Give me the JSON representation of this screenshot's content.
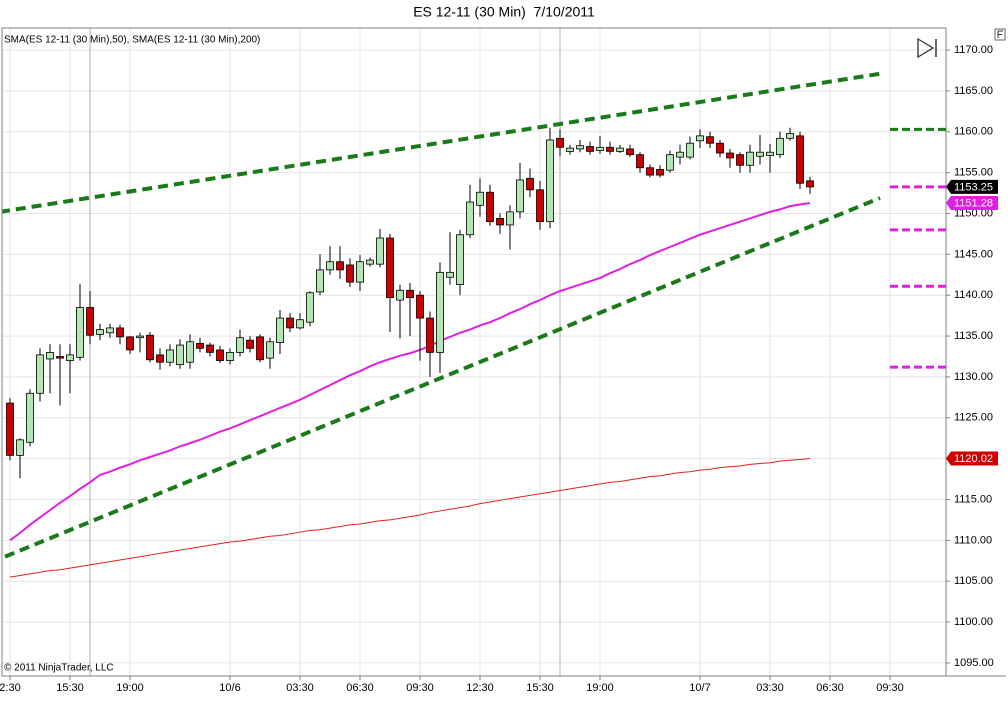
{
  "chart_data": {
    "type": "candlestick",
    "title": "ES 12-11 (30 Min)  7/10/2011",
    "indicator_label": "SMA(ES 12-11 (30 Min),50), SMA(ES 12-11 (30 Min),200)",
    "copyright": "© 2011 NinjaTrader, LLC",
    "categories": [
      "2:30",
      null,
      null,
      null,
      null,
      null,
      "15:30",
      null,
      null,
      null,
      null,
      null,
      "19:00",
      null,
      null,
      null,
      null,
      null,
      null,
      null,
      null,
      null,
      "10/6",
      null,
      null,
      null,
      null,
      null,
      null,
      "03:30",
      null,
      null,
      null,
      null,
      null,
      "06:30",
      null,
      null,
      null,
      null,
      null,
      "09:30",
      null,
      null,
      null,
      null,
      null,
      "12:30",
      null,
      null,
      null,
      null,
      null,
      "15:30",
      null,
      null,
      null,
      null,
      null,
      "19:00",
      null,
      null,
      null,
      null,
      null,
      null,
      null,
      null,
      null,
      "10/7",
      null,
      null,
      null,
      null,
      null,
      null,
      "03:30",
      null,
      null,
      null,
      null,
      null,
      "06:30",
      null,
      null,
      null,
      null,
      null,
      "09:30"
    ],
    "ohlc": {
      "up_color": "#b4e6b4",
      "down_color": "#cc0000",
      "outline": "#000000",
      "open": [
        1126.8,
        1120.4,
        1122.0,
        1128.0,
        1132.2,
        1132.5,
        1132.0,
        1132.4,
        1138.5,
        1135.2,
        1135.4,
        1136.0,
        1134.9,
        1134.8,
        1135.1,
        1132.7,
        1131.8,
        1131.5,
        1131.8,
        1134.1,
        1133.9,
        1133.3,
        1132.0,
        1133.0,
        1134.5,
        1134.9,
        1132.3,
        1134.2,
        1137.2,
        1136.0,
        1136.7,
        1140.4,
        1143.1,
        1144.1,
        1143.7,
        1141.6,
        1143.8,
        1143.8,
        1147.0,
        1139.4,
        1140.6,
        1140.0,
        1137.2,
        1133.0,
        1142.2,
        1141.3,
        1147.4,
        1151.0,
        1152.6,
        1149.4,
        1148.6,
        1150.2,
        1154.3,
        1152.9,
        1149.0,
        1159.2,
        1157.6,
        1157.9,
        1158.2,
        1157.7,
        1158.1,
        1157.6,
        1157.9,
        1157.2,
        1155.6,
        1155.4,
        1155.3,
        1156.9,
        1156.9,
        1158.9,
        1159.4,
        1158.6,
        1157.4,
        1157.2,
        1155.9,
        1157.0,
        1157.1,
        1157.2,
        1159.2,
        1159.5,
        1154.0,
        null,
        null,
        null,
        null,
        null,
        null,
        null,
        null
      ],
      "high": [
        1127.4,
        1122.5,
        1128.5,
        1133.5,
        1134.0,
        1134.0,
        1134.0,
        1141.4,
        1140.5,
        1136.5,
        1136.5,
        1136.4,
        1135.0,
        1135.4,
        1135.5,
        1133.5,
        1134.0,
        1134.6,
        1135.2,
        1134.8,
        1134.2,
        1133.8,
        1133.5,
        1135.8,
        1135.0,
        1135.2,
        1134.8,
        1138.2,
        1137.8,
        1137.8,
        1140.5,
        1145.0,
        1146.0,
        1146.0,
        1144.5,
        1144.9,
        1144.6,
        1148.1,
        1147.5,
        1141.3,
        1141.5,
        1140.5,
        1138.0,
        1144.0,
        1147.7,
        1148.0,
        1153.5,
        1154.3,
        1153.5,
        1150.0,
        1151.0,
        1156.2,
        1155.5,
        1154.0,
        1160.5,
        1160.3,
        1158.4,
        1159.0,
        1158.8,
        1159.5,
        1158.8,
        1158.4,
        1158.4,
        1157.5,
        1156.0,
        1155.9,
        1157.7,
        1158.4,
        1159.4,
        1160.3,
        1160.0,
        1159.0,
        1157.9,
        1157.5,
        1158.4,
        1159.6,
        1158.5,
        1160.0,
        1160.5,
        1160.0,
        1154.5,
        null,
        null,
        null,
        null,
        null,
        null,
        null,
        null
      ],
      "low": [
        1119.8,
        1117.6,
        1121.5,
        1127.0,
        1128.0,
        1126.5,
        1128.0,
        1132.0,
        1134.0,
        1134.5,
        1134.8,
        1134.0,
        1132.8,
        1133.0,
        1131.8,
        1130.9,
        1131.3,
        1131.0,
        1131.0,
        1133.0,
        1132.5,
        1131.7,
        1131.5,
        1132.5,
        1133.0,
        1131.8,
        1131.0,
        1132.8,
        1135.5,
        1135.8,
        1136.2,
        1140.0,
        1142.5,
        1142.0,
        1141.0,
        1140.5,
        1143.5,
        1143.4,
        1135.5,
        1134.7,
        1135.0,
        1132.0,
        1130.0,
        1130.5,
        1141.3,
        1140.0,
        1147.0,
        1149.6,
        1148.5,
        1147.5,
        1145.6,
        1149.4,
        1152.0,
        1148.0,
        1148.2,
        1157.0,
        1157.2,
        1157.5,
        1157.2,
        1157.3,
        1157.2,
        1157.4,
        1156.9,
        1155.0,
        1154.4,
        1154.4,
        1155.0,
        1156.0,
        1156.6,
        1158.0,
        1158.0,
        1156.9,
        1155.6,
        1155.0,
        1155.0,
        1156.0,
        1155.0,
        1156.8,
        1158.9,
        1153.0,
        1152.4,
        null,
        null,
        null,
        null,
        null,
        null,
        null,
        null
      ],
      "close": [
        1120.4,
        1122.3,
        1128.0,
        1132.7,
        1133.0,
        1132.3,
        1132.7,
        1138.5,
        1135.1,
        1135.8,
        1136.0,
        1134.9,
        1133.3,
        1135.0,
        1132.1,
        1131.8,
        1133.3,
        1133.9,
        1134.3,
        1133.5,
        1133.0,
        1132.0,
        1133.0,
        1134.8,
        1133.5,
        1132.1,
        1134.3,
        1137.2,
        1136.0,
        1137.0,
        1140.3,
        1143.1,
        1144.1,
        1143.1,
        1141.6,
        1144.1,
        1144.3,
        1147.0,
        1139.7,
        1140.6,
        1139.7,
        1137.2,
        1133.0,
        1142.8,
        1142.8,
        1147.4,
        1151.4,
        1152.6,
        1149.0,
        1148.6,
        1150.2,
        1154.1,
        1152.9,
        1149.0,
        1159.0,
        1158.1,
        1158.0,
        1158.3,
        1157.6,
        1158.1,
        1157.6,
        1158.0,
        1157.2,
        1155.6,
        1154.7,
        1154.7,
        1157.2,
        1157.5,
        1158.6,
        1159.5,
        1158.6,
        1157.4,
        1156.8,
        1155.9,
        1157.5,
        1157.5,
        1157.5,
        1159.2,
        1159.8,
        1153.7,
        1153.25,
        null,
        null,
        null,
        null,
        null,
        null,
        null,
        null
      ]
    },
    "series": [
      {
        "color": "#e020e0",
        "values": [
          1110.0,
          1110.9,
          1111.9,
          1112.8,
          1113.7,
          1114.6,
          1115.4,
          1116.3,
          1117.1,
          1118.0,
          1118.4,
          1118.9,
          1119.3,
          1119.8,
          1120.2,
          1120.6,
          1121.0,
          1121.5,
          1121.9,
          1122.3,
          1122.8,
          1123.3,
          1123.7,
          1124.2,
          1124.7,
          1125.2,
          1125.7,
          1126.2,
          1126.7,
          1127.2,
          1127.8,
          1128.4,
          1129.0,
          1129.6,
          1130.2,
          1130.7,
          1131.3,
          1131.8,
          1132.2,
          1132.6,
          1132.9,
          1133.3,
          1133.8,
          1134.4,
          1134.9,
          1135.4,
          1135.8,
          1136.3,
          1136.7,
          1137.2,
          1137.8,
          1138.3,
          1138.9,
          1139.4,
          1140.0,
          1140.5,
          1140.9,
          1141.3,
          1141.7,
          1142.1,
          1142.7,
          1143.2,
          1143.8,
          1144.3,
          1144.9,
          1145.4,
          1145.9,
          1146.4,
          1146.9,
          1147.4,
          1147.8,
          1148.2,
          1148.6,
          1149.0,
          1149.4,
          1149.8,
          1150.2,
          1150.5,
          1150.9,
          1151.1,
          1151.28,
          null,
          null,
          null,
          null,
          null,
          null,
          null,
          null
        ]
      },
      {
        "color": "#e02020",
        "values": [
          1105.5,
          1105.7,
          1105.9,
          1106.1,
          1106.3,
          1106.4,
          1106.6,
          1106.8,
          1107.0,
          1107.2,
          1107.4,
          1107.6,
          1107.8,
          1108.0,
          1108.2,
          1108.4,
          1108.6,
          1108.8,
          1109.0,
          1109.2,
          1109.4,
          1109.6,
          1109.8,
          1109.9,
          1110.1,
          1110.3,
          1110.5,
          1110.6,
          1110.8,
          1111.0,
          1111.2,
          1111.3,
          1111.5,
          1111.7,
          1111.9,
          1112.0,
          1112.2,
          1112.4,
          1112.5,
          1112.7,
          1112.9,
          1113.1,
          1113.4,
          1113.6,
          1113.8,
          1114.0,
          1114.2,
          1114.5,
          1114.7,
          1114.9,
          1115.1,
          1115.3,
          1115.5,
          1115.7,
          1115.9,
          1116.1,
          1116.3,
          1116.5,
          1116.7,
          1116.9,
          1117.1,
          1117.2,
          1117.4,
          1117.6,
          1117.8,
          1117.9,
          1118.1,
          1118.3,
          1118.4,
          1118.6,
          1118.7,
          1118.9,
          1119.0,
          1119.1,
          1119.3,
          1119.4,
          1119.5,
          1119.7,
          1119.8,
          1119.9,
          1120.02,
          null,
          null,
          null,
          null,
          null,
          null,
          null,
          null
        ]
      }
    ],
    "trendlines": [
      {
        "x": [
          -1,
          87
        ],
        "values": [
          1150.2,
          1167.1
        ],
        "color": "#1a7a1a"
      },
      {
        "x": [
          -0.5,
          87
        ],
        "values": [
          1108.0,
          1151.9
        ],
        "color": "#1a7a1a"
      }
    ],
    "levels": [
      {
        "value": 1160.3,
        "color": "#1a7a1a"
      },
      {
        "value": 1153.25,
        "color": "#e020e0"
      },
      {
        "value": 1148.0,
        "color": "#e020e0"
      },
      {
        "value": 1141.1,
        "color": "#e020e0"
      },
      {
        "value": 1131.2,
        "color": "#e020e0"
      }
    ],
    "axis_markers": [
      {
        "value": 1153.25,
        "color": "#000000"
      },
      {
        "value": 1151.28,
        "color": "#e020e0"
      },
      {
        "value": 1120.02,
        "color": "#d00000"
      }
    ],
    "ylim": [
      1093.4,
      1172.7
    ],
    "yticks": [
      {
        "value": 1095,
        "label": "1095.00"
      },
      {
        "value": 1100,
        "label": "1100.00"
      },
      {
        "value": 1105,
        "label": "1105.00"
      },
      {
        "value": 1110,
        "label": "1110.00"
      },
      {
        "value": 1115,
        "label": "1115.00"
      },
      {
        "value": 1120,
        "label": "1120.00"
      },
      {
        "value": 1125,
        "label": "1125.00"
      },
      {
        "value": 1130,
        "label": "1130.00"
      },
      {
        "value": 1135,
        "label": "1135.00"
      },
      {
        "value": 1140,
        "label": "1140.00"
      },
      {
        "value": 1145,
        "label": "1145.00"
      },
      {
        "value": 1150,
        "label": "1150.00"
      },
      {
        "value": 1155,
        "label": "1155.00"
      },
      {
        "value": 1160,
        "label": "1160.00"
      },
      {
        "value": 1165,
        "label": "1165.00"
      },
      {
        "value": 1170,
        "label": "1170.00"
      }
    ],
    "grid": true
  }
}
